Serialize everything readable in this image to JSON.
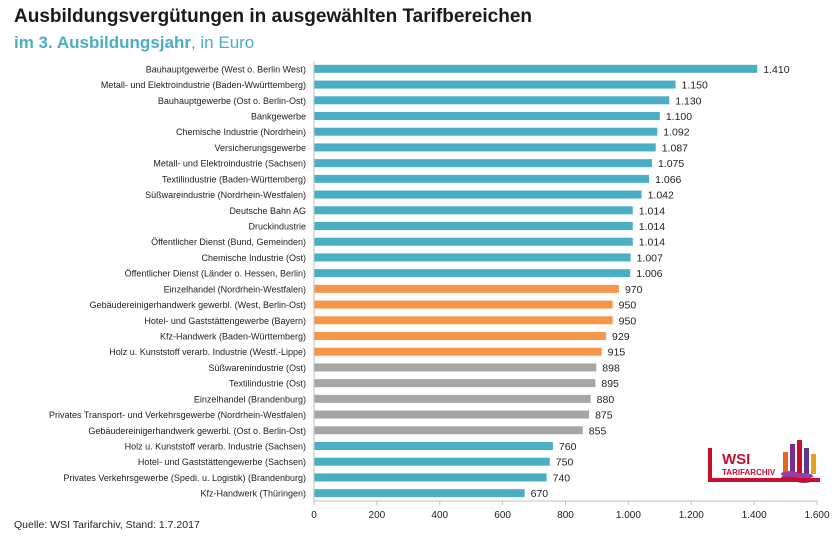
{
  "title": "Ausbildungsvergütungen in ausgewählten Tarifbereichen",
  "subtitle_bold": "im 3. Ausbildungsjahr",
  "subtitle_rest": ", in Euro",
  "source": "Quelle: WSI Tarifarchiv, Stand: 1.7.2017",
  "logo": {
    "line1": "WSI",
    "line2": "TARIFARCHIV"
  },
  "colors": {
    "blue": "#4aaec7",
    "orange": "#f5964a",
    "gray": "#a6a6a6",
    "axis": "#bfbfbf",
    "logo_red": "#c8102e"
  },
  "chart_data": {
    "type": "bar",
    "orientation": "horizontal",
    "xlim": [
      0,
      1600
    ],
    "xticks": [
      0,
      200,
      400,
      600,
      800,
      1000,
      1200,
      1400,
      1600
    ],
    "xtick_labels": [
      "0",
      "200",
      "400",
      "600",
      "800",
      "1.000",
      "1.200",
      "1.400",
      "1.600"
    ],
    "grid": false,
    "bars": [
      {
        "label": "Bauhauptgewerbe (West o. Berlin West)",
        "value": 1410,
        "value_label": "1.410",
        "color": "blue"
      },
      {
        "label": "Metall- und Elektroindustrie (Baden-Wwürttemberg)",
        "value": 1150,
        "value_label": "1.150",
        "color": "blue"
      },
      {
        "label": "Bauhauptgewerbe (Ost o. Berlin-Ost)",
        "value": 1130,
        "value_label": "1.130",
        "color": "blue"
      },
      {
        "label": "Bankgewerbe",
        "value": 1100,
        "value_label": "1.100",
        "color": "blue"
      },
      {
        "label": "Chemische Industrie (Nordrhein)",
        "value": 1092,
        "value_label": "1.092",
        "color": "blue"
      },
      {
        "label": "Versicherungsgewerbe",
        "value": 1087,
        "value_label": "1.087",
        "color": "blue"
      },
      {
        "label": "Metall- und Elektroindustrie (Sachsen)",
        "value": 1075,
        "value_label": "1.075",
        "color": "blue"
      },
      {
        "label": "Textilindustrie (Baden-Württemberg)",
        "value": 1066,
        "value_label": "1.066",
        "color": "blue"
      },
      {
        "label": "Süßwareindustrie (Nordrhein-Westfalen)",
        "value": 1042,
        "value_label": "1.042",
        "color": "blue"
      },
      {
        "label": "Deutsche Bahn AG",
        "value": 1014,
        "value_label": "1.014",
        "color": "blue"
      },
      {
        "label": "Druckindustrie",
        "value": 1014,
        "value_label": "1.014",
        "color": "blue"
      },
      {
        "label": "Öffentlicher Dienst (Bund, Gemeinden)",
        "value": 1014,
        "value_label": "1.014",
        "color": "blue"
      },
      {
        "label": "Chemische Industrie (Ost)",
        "value": 1007,
        "value_label": "1.007",
        "color": "blue"
      },
      {
        "label": "Öffentlicher Dienst (Länder o. Hessen, Berlin)",
        "value": 1006,
        "value_label": "1.006",
        "color": "blue"
      },
      {
        "label": "Einzelhandel (Nordrhein-Westfalen)",
        "value": 970,
        "value_label": "970",
        "color": "orange"
      },
      {
        "label": "Gebäudereinigerhandwerk gewerbl. (West, Berlin-Ost)",
        "value": 950,
        "value_label": "950",
        "color": "orange"
      },
      {
        "label": "Hotel- und Gaststättengewerbe (Bayern)",
        "value": 950,
        "value_label": "950",
        "color": "orange"
      },
      {
        "label": "Kfz-Handwerk (Baden-Württemberg)",
        "value": 929,
        "value_label": "929",
        "color": "orange"
      },
      {
        "label": "Holz u. Kunststoff verarb. Industrie (Westf.-Lippe)",
        "value": 915,
        "value_label": "915",
        "color": "orange"
      },
      {
        "label": "Süßwarenindustrie (Ost)",
        "value": 898,
        "value_label": "898",
        "color": "gray"
      },
      {
        "label": "Textilindustrie (Ost)",
        "value": 895,
        "value_label": "895",
        "color": "gray"
      },
      {
        "label": "Einzelhandel (Brandenburg)",
        "value": 880,
        "value_label": "880",
        "color": "gray"
      },
      {
        "label": "Privates Transport- und Verkehrsgewerbe (Nordrhein-Westfalen)",
        "value": 875,
        "value_label": "875",
        "color": "gray"
      },
      {
        "label": "Gebäudereinigerhandwerk gewerbl. (Ost o. Berlin-Ost)",
        "value": 855,
        "value_label": "855",
        "color": "gray"
      },
      {
        "label": "Holz u. Kunststoff verarb. Industrie (Sachsen)",
        "value": 760,
        "value_label": "760",
        "color": "blue"
      },
      {
        "label": "Hotel- und Gaststättengewerbe (Sachsen)",
        "value": 750,
        "value_label": "750",
        "color": "blue"
      },
      {
        "label": "Privates Verkehrsgewerbe (Spedi. u. Logistik) (Brandenburg)",
        "value": 740,
        "value_label": "740",
        "color": "blue"
      },
      {
        "label": "Kfz-Handwerk (Thüringen)",
        "value": 670,
        "value_label": "670",
        "color": "blue"
      }
    ]
  }
}
